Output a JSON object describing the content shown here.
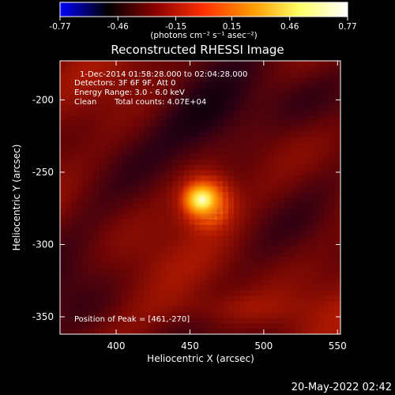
{
  "colorbar": {
    "ticks": [
      "-0.77",
      "-0.46",
      "-0.15",
      "0.15",
      "0.46",
      "0.77"
    ],
    "tick_values": [
      -0.77,
      -0.46,
      -0.15,
      0.15,
      0.46,
      0.77
    ],
    "range": [
      -0.77,
      0.77
    ],
    "unit_label": "(photons cm⁻² s⁻¹ asec⁻²)",
    "colormap": [
      "#0000ff",
      "#000000",
      "#8b0000",
      "#ff3000",
      "#ff9900",
      "#ffff66",
      "#ffffff"
    ]
  },
  "chart_data": {
    "type": "heatmap",
    "title": "Reconstructed RHESSI Image",
    "xlabel": "Heliocentric X (arcsec)",
    "ylabel": "Heliocentric Y (arcsec)",
    "xlim": [
      362,
      552
    ],
    "ylim": [
      -362,
      -173
    ],
    "x_ticks": [
      400,
      450,
      500,
      550
    ],
    "y_ticks": [
      -200,
      -250,
      -300,
      -350
    ],
    "peak": [
      461,
      -270
    ],
    "annotations": {
      "time_range": "1-Dec-2014 01:58:28.000 to 02:04:28.000",
      "detectors": "Detectors: 3F 6F 9F, Att 0",
      "energy": "Energy Range: 3.0 - 6.0 keV",
      "method": "Clean",
      "counts": "Total counts: 4.07E+04",
      "peak_text": "Position of Peak = [461,-270]"
    }
  },
  "footer": {
    "date": "20-May-2022 02:42"
  }
}
